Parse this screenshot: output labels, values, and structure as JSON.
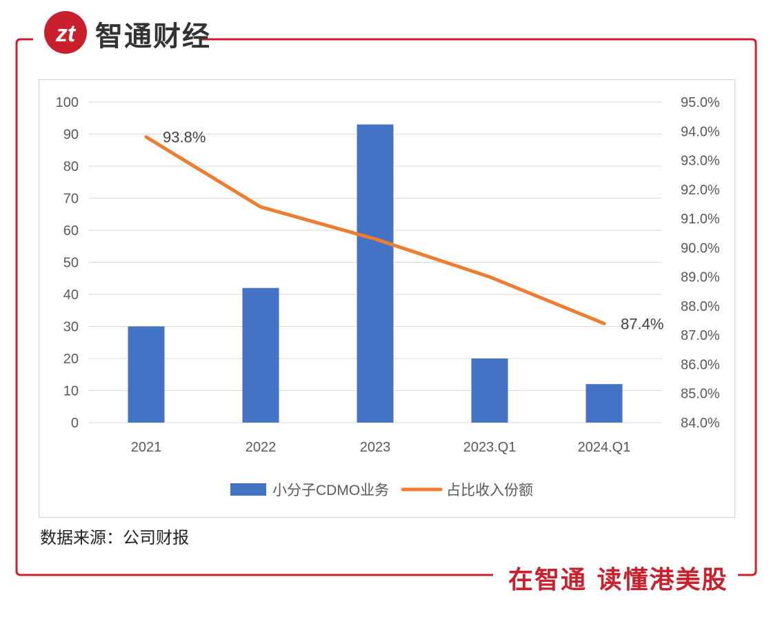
{
  "brand": {
    "name": "智通财经",
    "logo_text": "zt"
  },
  "footer": {
    "source": "数据来源：公司财报",
    "slogan": "在智通 读懂港美股"
  },
  "colors": {
    "bar": "#4472C4",
    "line": "#ED7D31",
    "frame": "#c8202c"
  },
  "chart_data": {
    "type": "bar",
    "categories": [
      "2021",
      "2022",
      "2023",
      "2023.Q1",
      "2024.Q1"
    ],
    "series": [
      {
        "name": "小分子CDMO业务",
        "type": "bar",
        "axis": "left",
        "values": [
          30,
          42,
          93,
          20,
          12
        ]
      },
      {
        "name": "占比收入份额",
        "type": "line",
        "axis": "right",
        "values": [
          93.8,
          91.4,
          90.3,
          89.0,
          87.4
        ]
      }
    ],
    "left_axis": {
      "ylim": [
        0,
        100
      ],
      "ticks": [
        "0",
        "10",
        "20",
        "30",
        "40",
        "50",
        "60",
        "70",
        "80",
        "90",
        "100"
      ]
    },
    "right_axis": {
      "ylim": [
        84.0,
        95.0
      ],
      "ticks": [
        "84.0%",
        "85.0%",
        "86.0%",
        "87.0%",
        "88.0%",
        "89.0%",
        "90.0%",
        "91.0%",
        "92.0%",
        "93.0%",
        "94.0%",
        "95.0%"
      ]
    },
    "data_labels": [
      {
        "series": 1,
        "index": 0,
        "text": "93.8%"
      },
      {
        "series": 1,
        "index": 4,
        "text": "87.4%"
      }
    ],
    "grid": true,
    "legend": "bottom"
  }
}
